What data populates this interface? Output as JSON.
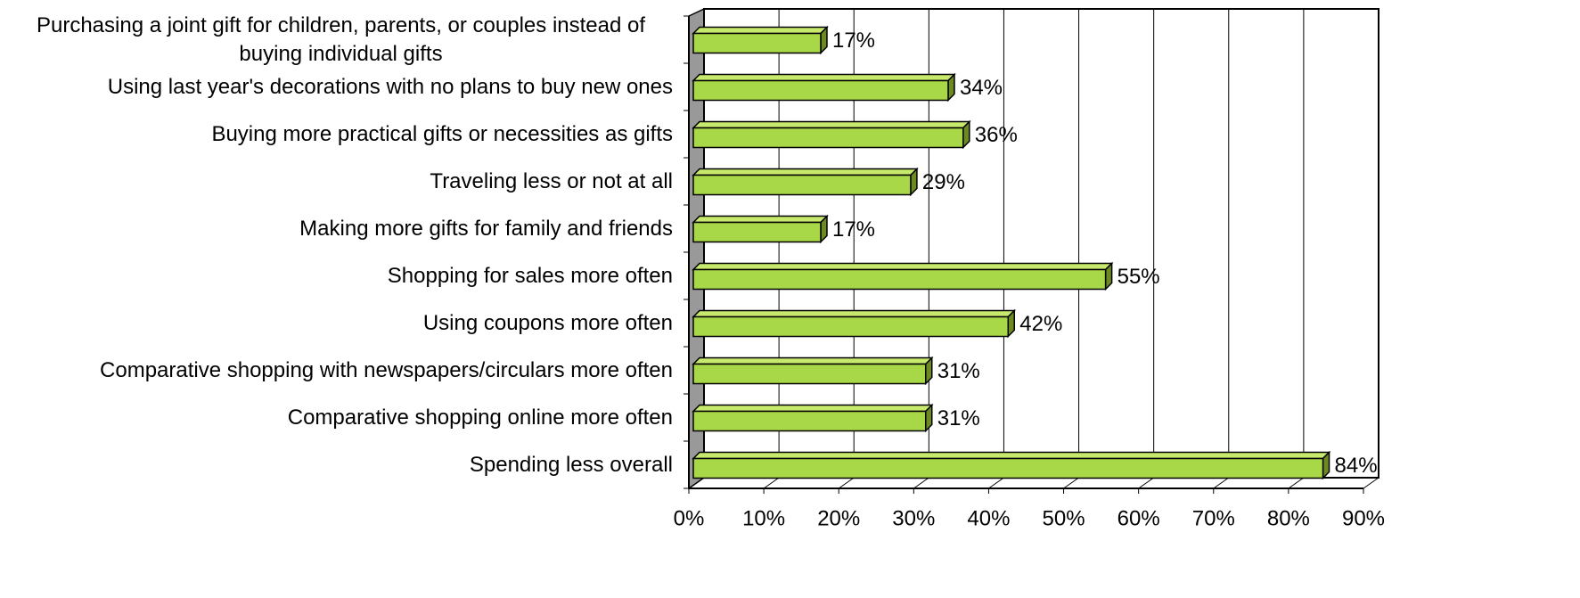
{
  "chart_data": {
    "type": "bar3d_horizontal",
    "categories": [
      "Purchasing a joint gift for children, parents, or couples instead of buying individual gifts",
      "Using last year's decorations with no plans to buy new ones",
      "Buying more practical gifts or necessities as gifts",
      "Traveling less or not at all",
      "Making more gifts for family and friends",
      "Shopping for sales more often",
      "Using coupons more often",
      "Comparative shopping with newspapers/circulars more often",
      "Comparative shopping online more often",
      "Spending less overall"
    ],
    "values": [
      17,
      34,
      36,
      29,
      17,
      55,
      42,
      31,
      31,
      84
    ],
    "value_labels": [
      "17%",
      "34%",
      "36%",
      "29%",
      "17%",
      "55%",
      "42%",
      "31%",
      "31%",
      "84%"
    ],
    "color": "#a8d848",
    "xlim": [
      0,
      90
    ],
    "xticks": [
      {
        "value": 0,
        "label": "0%"
      },
      {
        "value": 10,
        "label": "10%"
      },
      {
        "value": 20,
        "label": "20%"
      },
      {
        "value": 30,
        "label": "30%"
      },
      {
        "value": 40,
        "label": "40%"
      },
      {
        "value": 50,
        "label": "50%"
      },
      {
        "value": 60,
        "label": "60%"
      },
      {
        "value": 70,
        "label": "70%"
      },
      {
        "value": 80,
        "label": "80%"
      },
      {
        "value": 90,
        "label": "90%"
      }
    ],
    "grid": true
  }
}
